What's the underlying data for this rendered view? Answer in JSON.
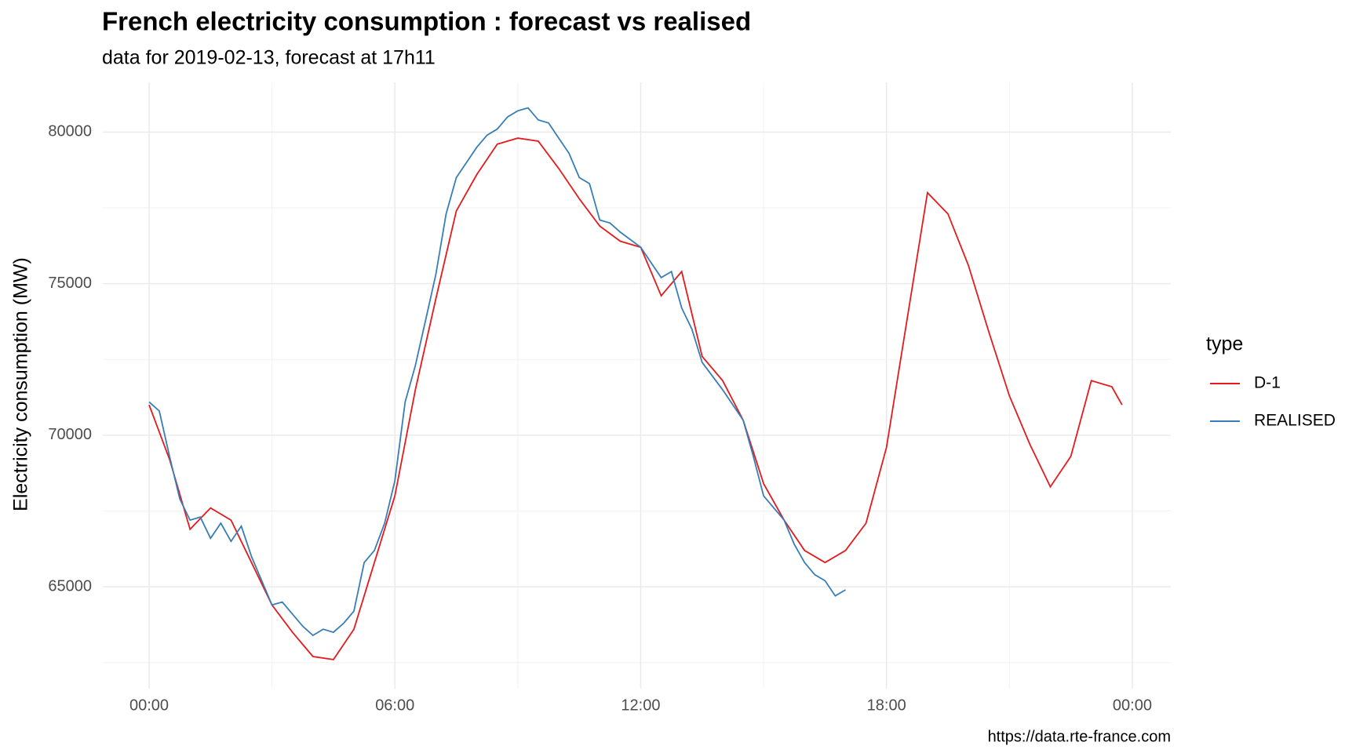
{
  "chart_data": {
    "type": "line",
    "title": "French electricity consumption : forecast vs realised",
    "subtitle": "data for 2019-02-13, forecast at 17h11",
    "y_label": "Electricity consumption (MW)",
    "caption": "https://data.rte-france.com",
    "legend_title": "type",
    "legend": "right",
    "grid": true,
    "xlim": [
      -1.13,
      24.94
    ],
    "ylim": [
      61640,
      81640
    ],
    "xticks": [
      {
        "value": 0,
        "label": "00:00"
      },
      {
        "value": 6,
        "label": "06:00"
      },
      {
        "value": 12,
        "label": "12:00"
      },
      {
        "value": 18,
        "label": "18:00"
      },
      {
        "value": 24,
        "label": "00:00"
      }
    ],
    "x_minor_ticks": [
      3,
      9,
      15,
      21
    ],
    "yticks": [
      65000,
      70000,
      75000,
      80000
    ],
    "y_minor_ticks": [
      62500,
      67500,
      72500,
      77500
    ],
    "series": [
      {
        "name": "D-1",
        "color": "#e41a1c",
        "x": [
          0,
          0.5,
          1,
          1.5,
          2,
          2.5,
          3,
          3.5,
          4,
          4.5,
          5,
          5.5,
          6,
          6.5,
          7,
          7.5,
          8,
          8.5,
          9,
          9.5,
          10,
          10.5,
          11,
          11.5,
          12,
          12.5,
          13,
          13.5,
          14,
          14.5,
          15,
          15.5,
          16,
          16.5,
          17,
          17.5,
          18,
          19,
          19.5,
          20,
          20.5,
          21,
          21.5,
          22,
          22.5,
          23,
          23.5,
          23.75
        ],
        "values": [
          71000,
          69200,
          66900,
          67600,
          67200,
          65800,
          64400,
          63500,
          62700,
          62600,
          63600,
          65800,
          68000,
          71500,
          74500,
          77400,
          78600,
          79600,
          79800,
          79700,
          78800,
          77800,
          76900,
          76400,
          76200,
          74600,
          75400,
          72600,
          71800,
          70500,
          68400,
          67200,
          66200,
          65800,
          66200,
          67100,
          69600,
          78000,
          77300,
          75600,
          73400,
          71300,
          69700,
          68300,
          69300,
          71800,
          71600,
          71000
        ]
      },
      {
        "name": "REALISED",
        "color": "#377eb8",
        "x": [
          0,
          0.25,
          0.5,
          0.75,
          1,
          1.25,
          1.5,
          1.75,
          2,
          2.25,
          2.5,
          3,
          3.25,
          3.5,
          3.75,
          4,
          4.25,
          4.5,
          4.75,
          5,
          5.25,
          5.5,
          5.75,
          6,
          6.25,
          6.5,
          6.75,
          7,
          7.25,
          7.5,
          7.75,
          8,
          8.25,
          8.5,
          8.75,
          9,
          9.25,
          9.5,
          9.75,
          10,
          10.25,
          10.5,
          10.75,
          11,
          11.25,
          11.5,
          12,
          12.25,
          12.5,
          12.75,
          13,
          13.25,
          13.5,
          14,
          14.5,
          14.75,
          15,
          15.25,
          15.5,
          15.75,
          16,
          16.25,
          16.5,
          16.75,
          17
        ],
        "values": [
          71100,
          70800,
          69300,
          67900,
          67200,
          67300,
          66600,
          67100,
          66500,
          67000,
          66000,
          64400,
          64500,
          64100,
          63700,
          63400,
          63600,
          63500,
          63800,
          64200,
          65800,
          66200,
          67100,
          68500,
          71100,
          72300,
          73800,
          75300,
          77300,
          78500,
          79000,
          79500,
          79900,
          80100,
          80500,
          80700,
          80800,
          80400,
          80300,
          79800,
          79300,
          78500,
          78300,
          77100,
          77000,
          76700,
          76200,
          75700,
          75200,
          75400,
          74200,
          73500,
          72400,
          71500,
          70500,
          69300,
          68000,
          67600,
          67200,
          66400,
          65800,
          65400,
          65200,
          64700,
          64900
        ]
      }
    ]
  }
}
